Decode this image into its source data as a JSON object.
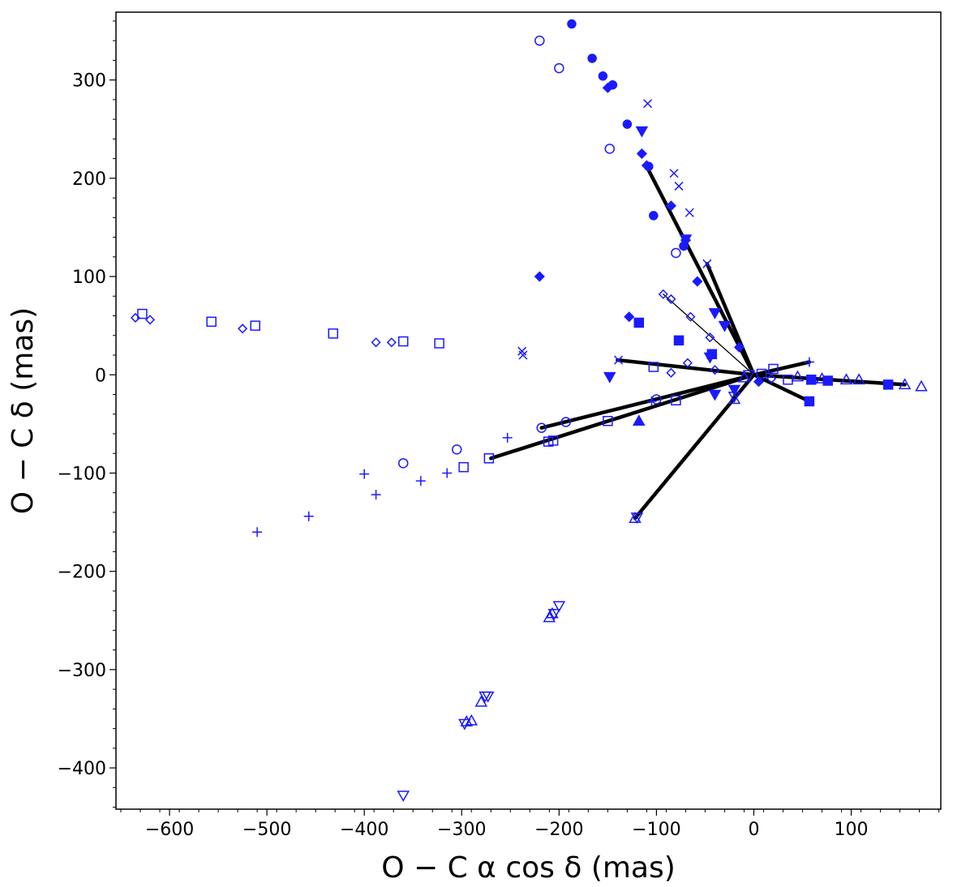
{
  "chart_data": {
    "type": "scatter",
    "title": "",
    "xlabel": "O − C   α cos δ (mas)",
    "ylabel": "O − C   δ (mas)",
    "xlim": [
      -655,
      192
    ],
    "ylim": [
      -442,
      369
    ],
    "xticks": [
      -600,
      -500,
      -400,
      -300,
      -200,
      -100,
      0,
      100
    ],
    "yticks": [
      -400,
      -300,
      -200,
      -100,
      0,
      100,
      200,
      300
    ],
    "xtick_labels": [
      "−600",
      "−500",
      "−400",
      "−300",
      "−200",
      "−100",
      "0",
      "100"
    ],
    "ytick_labels": [
      "−400",
      "−300",
      "−200",
      "−100",
      "0",
      "100",
      "200",
      "300"
    ],
    "grid": false,
    "point_color": "#1a1aff",
    "line_color": "#000000",
    "series": [
      {
        "name": "filled-circle",
        "marker": "circle",
        "filled": true,
        "points": [
          [
            -187,
            357
          ],
          [
            -166,
            322
          ],
          [
            -155,
            304
          ],
          [
            -130,
            255
          ],
          [
            -108,
            212
          ],
          [
            -103,
            162
          ],
          [
            -72,
            131
          ],
          [
            -145,
            295
          ]
        ]
      },
      {
        "name": "open-circle",
        "marker": "circle",
        "filled": false,
        "points": [
          [
            -220,
            340
          ],
          [
            -200,
            312
          ],
          [
            -148,
            230
          ],
          [
            -80,
            124
          ],
          [
            -305,
            -76
          ],
          [
            -360,
            -90
          ],
          [
            -218,
            -54
          ],
          [
            -193,
            -48
          ],
          [
            -100,
            -25
          ]
        ]
      },
      {
        "name": "filled-diamond",
        "marker": "diamond",
        "filled": true,
        "points": [
          [
            -220,
            100
          ],
          [
            -128,
            59
          ],
          [
            -150,
            292
          ],
          [
            -115,
            225
          ],
          [
            -110,
            213
          ],
          [
            -85,
            172
          ],
          [
            -70,
            137
          ],
          [
            -58,
            95
          ],
          [
            -15,
            28
          ],
          [
            5,
            -7
          ]
        ]
      },
      {
        "name": "open-diamond",
        "marker": "diamond",
        "filled": false,
        "points": [
          [
            -635,
            58
          ],
          [
            -620,
            56
          ],
          [
            -525,
            47
          ],
          [
            -388,
            33
          ],
          [
            -372,
            33
          ],
          [
            -93,
            82
          ],
          [
            -85,
            77
          ],
          [
            -65,
            59
          ],
          [
            -45,
            38
          ],
          [
            -68,
            12
          ],
          [
            -40,
            5
          ],
          [
            -85,
            2
          ],
          [
            18,
            -4
          ]
        ]
      },
      {
        "name": "open-square",
        "marker": "square",
        "filled": false,
        "points": [
          [
            -628,
            62
          ],
          [
            -557,
            54
          ],
          [
            -512,
            50
          ],
          [
            -432,
            42
          ],
          [
            -360,
            34
          ],
          [
            -323,
            32
          ],
          [
            -298,
            -94
          ],
          [
            -272,
            -85
          ],
          [
            -211,
            -68
          ],
          [
            -206,
            -67
          ],
          [
            -150,
            -47
          ],
          [
            -80,
            -26
          ],
          [
            -103,
            8
          ],
          [
            20,
            6
          ],
          [
            35,
            -5
          ],
          [
            8,
            1
          ]
        ]
      },
      {
        "name": "filled-square",
        "marker": "square",
        "filled": true,
        "points": [
          [
            -118,
            53
          ],
          [
            -77,
            35
          ],
          [
            -43,
            21
          ],
          [
            57,
            -27
          ],
          [
            59,
            -5
          ],
          [
            76,
            -6
          ],
          [
            138,
            -10
          ]
        ]
      },
      {
        "name": "plus",
        "marker": "plus",
        "filled": false,
        "points": [
          [
            -510,
            -160
          ],
          [
            -457,
            -144
          ],
          [
            -400,
            -101
          ],
          [
            -388,
            -122
          ],
          [
            -342,
            -108
          ],
          [
            -315,
            -100
          ],
          [
            -253,
            -64
          ],
          [
            -105,
            -27
          ],
          [
            57,
            13
          ]
        ]
      },
      {
        "name": "cross",
        "marker": "x",
        "filled": false,
        "points": [
          [
            -109,
            276
          ],
          [
            -82,
            205
          ],
          [
            -77,
            192
          ],
          [
            -66,
            165
          ],
          [
            -48,
            113
          ],
          [
            -238,
            24
          ],
          [
            -237,
            20
          ],
          [
            -139,
            15
          ]
        ]
      },
      {
        "name": "filled-triangle-up",
        "marker": "triangle-up",
        "filled": true,
        "points": [
          [
            -118,
            -47
          ]
        ]
      },
      {
        "name": "open-triangle-up",
        "marker": "triangle-up",
        "filled": false,
        "points": [
          [
            -210,
            -247
          ],
          [
            -207,
            -243
          ],
          [
            -295,
            -353
          ],
          [
            -290,
            -352
          ],
          [
            -280,
            -333
          ],
          [
            -122,
            -146
          ],
          [
            -20,
            -25
          ],
          [
            -10,
            -3
          ],
          [
            45,
            -2
          ],
          [
            70,
            -4
          ],
          [
            95,
            -5
          ],
          [
            108,
            -5
          ],
          [
            155,
            -10
          ],
          [
            172,
            -12
          ]
        ]
      },
      {
        "name": "open-triangle-down",
        "marker": "triangle-down",
        "filled": false,
        "points": [
          [
            -360,
            -428
          ],
          [
            -200,
            -235
          ],
          [
            -205,
            -243
          ],
          [
            -297,
            -355
          ],
          [
            -276,
            -327
          ],
          [
            -273,
            -327
          ],
          [
            -120,
            -145
          ],
          [
            -20,
            -22
          ],
          [
            -5,
            0
          ]
        ]
      },
      {
        "name": "filled-triangle-down",
        "marker": "triangle-down",
        "filled": true,
        "points": [
          [
            -148,
            -2
          ]
        ]
      },
      {
        "name": "filled-inverted-triangle",
        "marker": "triangle-down",
        "filled": true,
        "points": [
          [
            -115,
            248
          ],
          [
            -70,
            138
          ],
          [
            -40,
            63
          ],
          [
            -30,
            50
          ],
          [
            -45,
            18
          ],
          [
            -40,
            -20
          ],
          [
            -20,
            -15
          ]
        ]
      }
    ],
    "segments": [
      {
        "from": [
          0,
          0
        ],
        "to": [
          -110,
          212
        ],
        "weight": "thick"
      },
      {
        "from": [
          0,
          0
        ],
        "to": [
          -48,
          113
        ],
        "weight": "thick"
      },
      {
        "from": [
          0,
          0
        ],
        "to": [
          -93,
          82
        ],
        "weight": "thin"
      },
      {
        "from": [
          0,
          0
        ],
        "to": [
          -140,
          15
        ],
        "weight": "thick"
      },
      {
        "from": [
          0,
          0
        ],
        "to": [
          -270,
          -85
        ],
        "weight": "thick"
      },
      {
        "from": [
          0,
          0
        ],
        "to": [
          -218,
          -54
        ],
        "weight": "thick"
      },
      {
        "from": [
          0,
          0
        ],
        "to": [
          -150,
          -47
        ],
        "weight": "thin"
      },
      {
        "from": [
          0,
          0
        ],
        "to": [
          -122,
          -146
        ],
        "weight": "thick"
      },
      {
        "from": [
          0,
          0
        ],
        "to": [
          -20,
          -25
        ],
        "weight": "thin"
      },
      {
        "from": [
          0,
          0
        ],
        "to": [
          57,
          13
        ],
        "weight": "thick"
      },
      {
        "from": [
          0,
          0
        ],
        "to": [
          57,
          -27
        ],
        "weight": "thick"
      },
      {
        "from": [
          0,
          0
        ],
        "to": [
          155,
          -10
        ],
        "weight": "thick"
      }
    ]
  }
}
